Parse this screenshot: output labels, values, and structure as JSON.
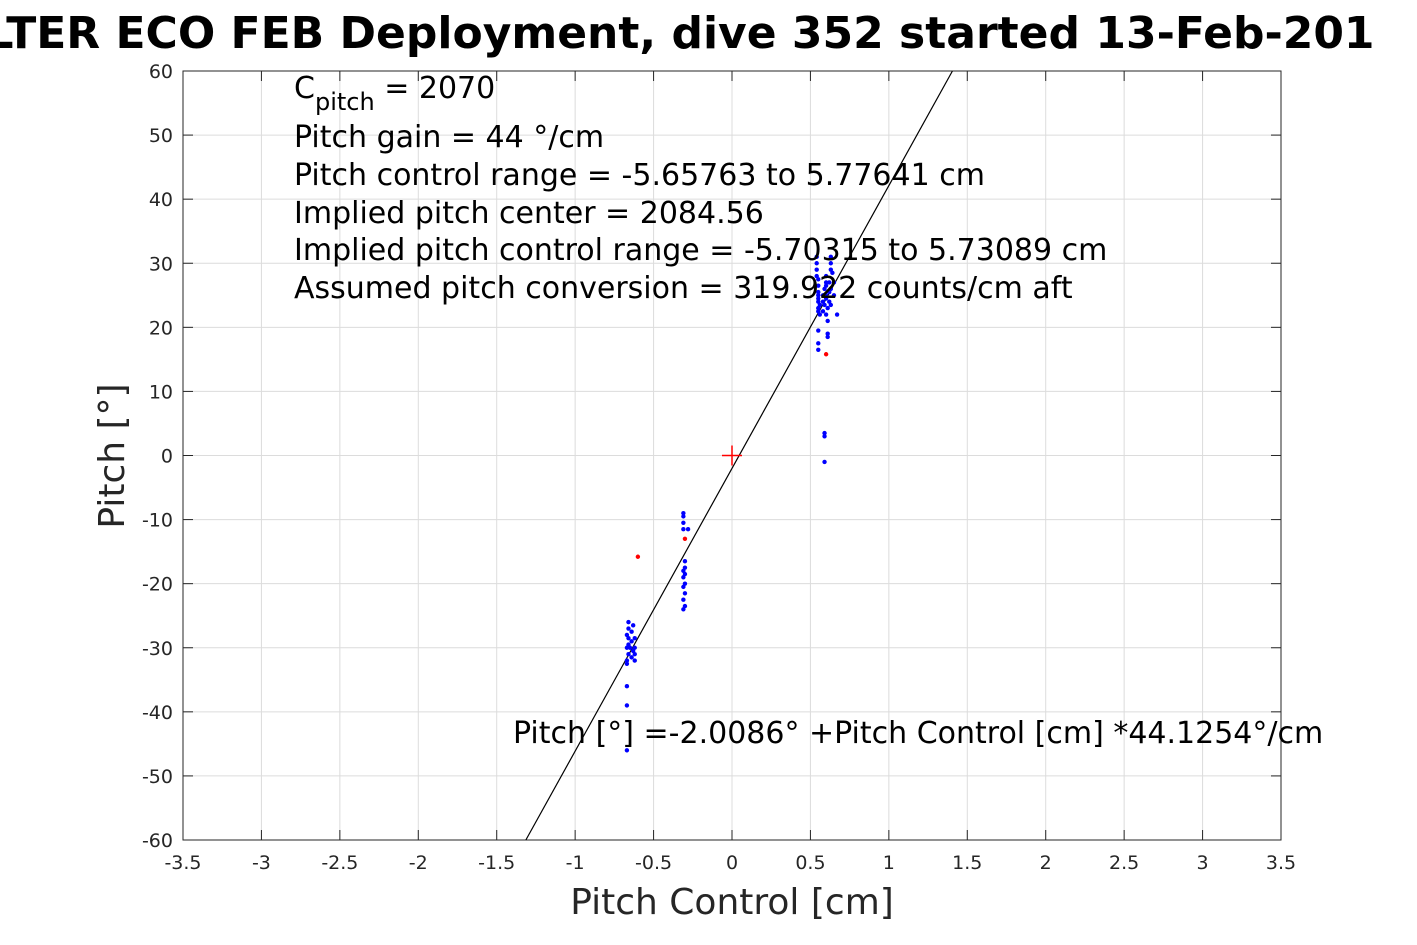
{
  "chart_data": {
    "type": "scatter",
    "title": "LTER ECO FEB Deployment, dive 352 started 13-Feb-201",
    "xlabel": "Pitch Control [cm]",
    "ylabel": "Pitch [°]",
    "xlim": [
      -3.5,
      3.5
    ],
    "ylim": [
      -60,
      60
    ],
    "x_ticks": [
      "-3.5",
      "-3",
      "-2.5",
      "-2",
      "-1.5",
      "-1",
      "-0.5",
      "0",
      "0.5",
      "1",
      "1.5",
      "2",
      "2.5",
      "3",
      "3.5"
    ],
    "y_ticks": [
      "60",
      "50",
      "40",
      "30",
      "20",
      "10",
      "0",
      "-10",
      "-20",
      "-30",
      "-40",
      "-50",
      "-60"
    ],
    "grid": true,
    "annotations": {
      "c_pitch_base": "C",
      "c_pitch_sub": "pitch",
      "c_pitch_rest": " = 2070",
      "pitch_gain": "Pitch gain = 44 °/cm",
      "control_range": "Pitch control range = -5.65763 to 5.77641 cm",
      "implied_center": "Implied pitch center = 2084.56",
      "implied_range": "Implied pitch control range = -5.70315 to 5.73089 cm",
      "conversion": "Assumed pitch conversion = 319.922 counts/cm aft",
      "fit_equation": "Pitch [°] =-2.0086° +Pitch Control [cm] *44.1254°/cm"
    },
    "fit_line": {
      "intercept": -2.0086,
      "slope": 44.1254,
      "color": "#000000"
    },
    "center_marker": {
      "x": 0,
      "y": 0,
      "color": "#ff0000"
    },
    "series": [
      {
        "color": "#0000ff",
        "points": [
          [
            0.54,
            31
          ],
          [
            0.54,
            30
          ],
          [
            0.54,
            29
          ],
          [
            0.54,
            28
          ],
          [
            0.55,
            27.5
          ],
          [
            0.55,
            26.5
          ],
          [
            0.55,
            25.5
          ],
          [
            0.55,
            25
          ],
          [
            0.55,
            24.5
          ],
          [
            0.55,
            24
          ],
          [
            0.56,
            23.5
          ],
          [
            0.55,
            23
          ],
          [
            0.55,
            22.5
          ],
          [
            0.56,
            22
          ],
          [
            0.55,
            19.5
          ],
          [
            0.55,
            17.5
          ],
          [
            0.55,
            16.5
          ],
          [
            0.58,
            24
          ],
          [
            0.58,
            25
          ],
          [
            0.58,
            22.5
          ],
          [
            0.59,
            23.5
          ],
          [
            0.59,
            26
          ],
          [
            0.6,
            28
          ],
          [
            0.6,
            27
          ],
          [
            0.6,
            26.5
          ],
          [
            0.6,
            25
          ],
          [
            0.6,
            24.5
          ],
          [
            0.6,
            22
          ],
          [
            0.61,
            23
          ],
          [
            0.61,
            21
          ],
          [
            0.61,
            19
          ],
          [
            0.61,
            18.5
          ],
          [
            0.62,
            27
          ],
          [
            0.62,
            25.5
          ],
          [
            0.62,
            24
          ],
          [
            0.63,
            31
          ],
          [
            0.63,
            30
          ],
          [
            0.63,
            29
          ],
          [
            0.63,
            26
          ],
          [
            0.63,
            23.5
          ],
          [
            0.64,
            28.5
          ],
          [
            0.65,
            27
          ],
          [
            0.65,
            25
          ],
          [
            0.67,
            22
          ],
          [
            0.59,
            3.5
          ],
          [
            0.59,
            3
          ],
          [
            0.59,
            -1
          ],
          [
            -0.31,
            -9
          ],
          [
            -0.31,
            -9.5
          ],
          [
            -0.31,
            -10.5
          ],
          [
            -0.31,
            -11.5
          ],
          [
            -0.28,
            -11.5
          ],
          [
            -0.3,
            -16.5
          ],
          [
            -0.3,
            -17.5
          ],
          [
            -0.31,
            -18
          ],
          [
            -0.3,
            -18.5
          ],
          [
            -0.31,
            -19
          ],
          [
            -0.3,
            -20
          ],
          [
            -0.31,
            -20.5
          ],
          [
            -0.3,
            -21.5
          ],
          [
            -0.31,
            -22.5
          ],
          [
            -0.3,
            -23.5
          ],
          [
            -0.31,
            -24
          ],
          [
            -0.66,
            -26
          ],
          [
            -0.66,
            -27
          ],
          [
            -0.67,
            -28
          ],
          [
            -0.66,
            -28.5
          ],
          [
            -0.66,
            -29.5
          ],
          [
            -0.67,
            -30
          ],
          [
            -0.66,
            -31
          ],
          [
            -0.67,
            -32
          ],
          [
            -0.67,
            -32.5
          ],
          [
            -0.63,
            -26.5
          ],
          [
            -0.64,
            -27.5
          ],
          [
            -0.64,
            -29
          ],
          [
            -0.63,
            -30.5
          ],
          [
            -0.64,
            -31.5
          ],
          [
            -0.62,
            -28.5
          ],
          [
            -0.62,
            -30
          ],
          [
            -0.62,
            -31
          ],
          [
            -0.62,
            -32
          ],
          [
            -0.65,
            -30
          ],
          [
            -0.67,
            -36
          ],
          [
            -0.67,
            -39
          ],
          [
            -0.67,
            -46
          ]
        ]
      },
      {
        "color": "#ff0000",
        "points": [
          [
            0.6,
            15.8
          ],
          [
            -0.6,
            -15.8
          ],
          [
            -0.3,
            -13
          ]
        ]
      }
    ]
  }
}
